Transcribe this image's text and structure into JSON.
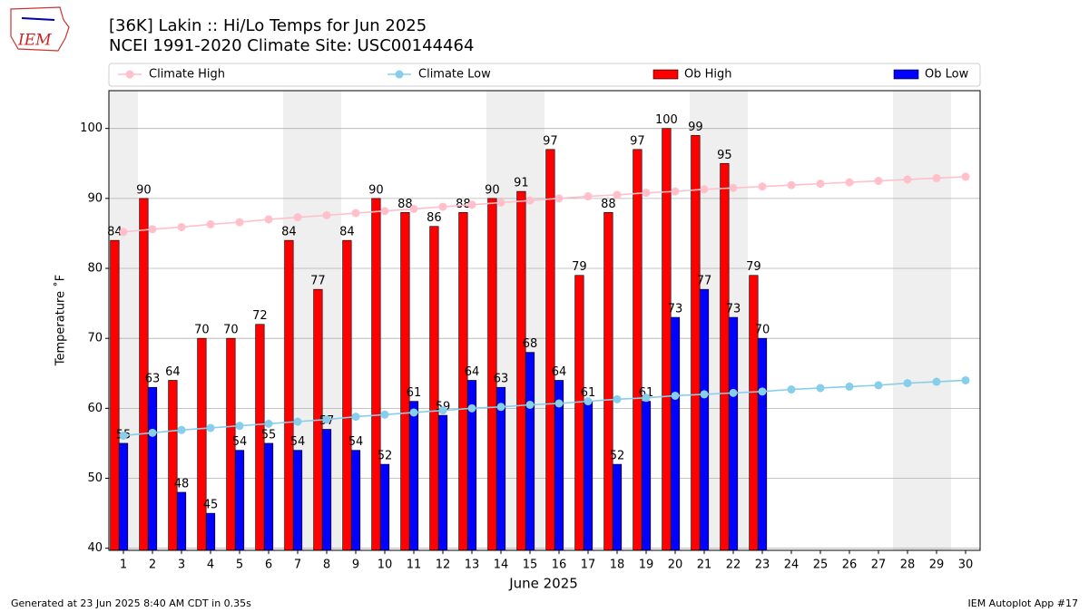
{
  "logo_text": "IEM",
  "footer_left": "Generated at 23 Jun 2025 8:40 AM CDT in 0.35s",
  "footer_right": "IEM Autoplot App #17",
  "chart_data": {
    "type": "bar",
    "title": "[36K] Lakin :: Hi/Lo Temps for Jun 2025",
    "subtitle": "NCEI 1991-2020 Climate Site: USC00144464",
    "x_label": "June 2025",
    "y_label": "Temperature ˚F",
    "x": [
      1,
      2,
      3,
      4,
      5,
      6,
      7,
      8,
      9,
      10,
      11,
      12,
      13,
      14,
      15,
      16,
      17,
      18,
      19,
      20,
      21,
      22,
      23,
      24,
      25,
      26,
      27,
      28,
      29,
      30
    ],
    "xlim": [
      0.5,
      30.5
    ],
    "xticks": [
      1,
      2,
      3,
      4,
      5,
      6,
      7,
      8,
      9,
      10,
      11,
      12,
      13,
      14,
      15,
      16,
      17,
      18,
      19,
      20,
      21,
      22,
      23,
      24,
      25,
      26,
      27,
      28,
      29,
      30
    ],
    "ylim": [
      39.7,
      105.4
    ],
    "yticks": [
      40,
      50,
      60,
      70,
      80,
      90,
      100
    ],
    "grid": true,
    "shaded_days": [
      1,
      7,
      8,
      14,
      15,
      21,
      22,
      28,
      29
    ],
    "series": [
      {
        "name": "Climate High",
        "color": "#ffc0cb",
        "style": "line",
        "values": [
          85.2,
          85.6,
          85.9,
          86.3,
          86.6,
          87.0,
          87.3,
          87.6,
          87.9,
          88.2,
          88.5,
          88.8,
          89.1,
          89.4,
          89.7,
          90.0,
          90.3,
          90.5,
          90.8,
          91.0,
          91.3,
          91.5,
          91.7,
          91.9,
          92.1,
          92.3,
          92.5,
          92.7,
          92.9,
          93.1
        ]
      },
      {
        "name": "Climate Low",
        "color": "#87ceeb",
        "style": "line",
        "values": [
          56.1,
          56.5,
          56.9,
          57.2,
          57.5,
          57.8,
          58.1,
          58.4,
          58.8,
          59.1,
          59.4,
          59.7,
          60.0,
          60.2,
          60.5,
          60.7,
          61.0,
          61.3,
          61.5,
          61.8,
          62.0,
          62.2,
          62.4,
          62.7,
          62.9,
          63.1,
          63.3,
          63.6,
          63.8,
          64.0
        ]
      },
      {
        "name": "Ob High",
        "color": "#ff0000",
        "style": "bar",
        "values": [
          84,
          90,
          64,
          70,
          70,
          72,
          84,
          77,
          84,
          90,
          88,
          86,
          88,
          90,
          91,
          97,
          79,
          88,
          97,
          100,
          99,
          95,
          79,
          null,
          null,
          null,
          null,
          null,
          null,
          null
        ]
      },
      {
        "name": "Ob Low",
        "color": "#0000ff",
        "style": "bar",
        "values": [
          55,
          63,
          48,
          45,
          54,
          55,
          54,
          57,
          54,
          52,
          61,
          59,
          64,
          63,
          68,
          64,
          61,
          52,
          61,
          73,
          77,
          73,
          70,
          null,
          null,
          null,
          null,
          null,
          null,
          null
        ]
      }
    ]
  }
}
